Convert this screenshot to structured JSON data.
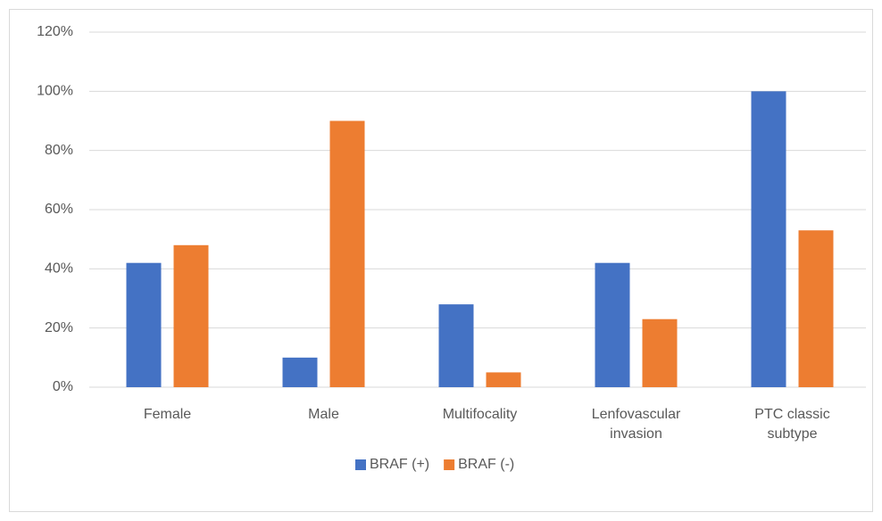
{
  "chart_data": {
    "type": "bar",
    "categories": [
      "Female",
      "Male",
      "Multifocality",
      "Lenfovascular invasion",
      "PTC classic subtype"
    ],
    "series": [
      {
        "name": "BRAF (+)",
        "color": "#4472c4",
        "values": [
          42,
          10,
          28,
          42,
          100
        ]
      },
      {
        "name": "BRAF (-)",
        "color": "#ed7d31",
        "values": [
          48,
          90,
          5,
          23,
          53
        ]
      }
    ],
    "ylim": [
      0,
      120
    ],
    "yticks": [
      {
        "value": 0,
        "label": "0%"
      },
      {
        "value": 20,
        "label": "20%"
      },
      {
        "value": 40,
        "label": "40%"
      },
      {
        "value": 60,
        "label": "60%"
      },
      {
        "value": 80,
        "label": "80%"
      },
      {
        "value": 100,
        "label": "100%"
      },
      {
        "value": 120,
        "label": "120%"
      }
    ],
    "grid": true,
    "legend": "bottom"
  }
}
